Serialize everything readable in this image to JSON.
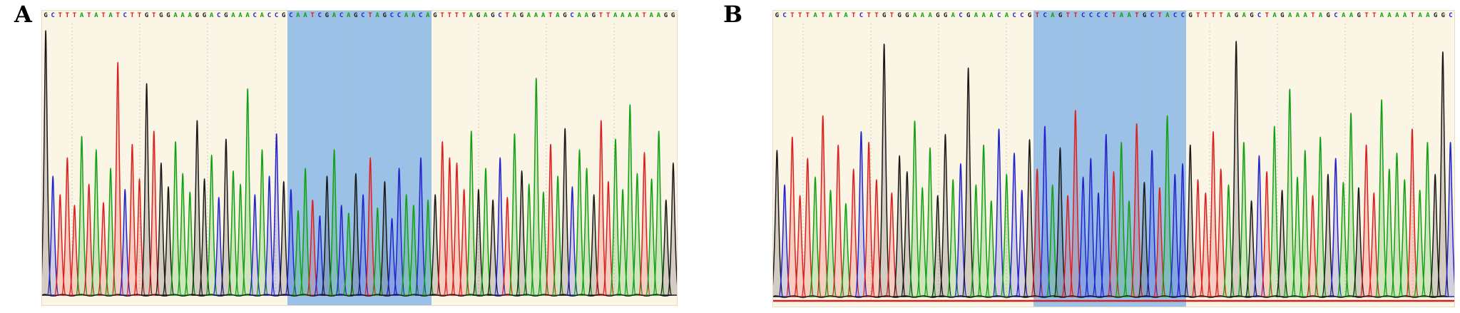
{
  "figure": {
    "kind": "Sanger sequencing chromatograms",
    "base_colors": {
      "A": "#12a112",
      "C": "#2323cc",
      "G": "#1a1a1a",
      "T": "#dc2020"
    },
    "background_color": "#faf5e5",
    "highlight_color": "#9bc1e7",
    "gridline_color": "#c0c0b2",
    "baseline_color": "#1c1c1c",
    "red_baseline_color": "#d42020"
  },
  "chart_data": [
    {
      "type": "area",
      "chart_kind": "sanger-chromatogram",
      "panel_label": "A",
      "sequence_5prime": "GCTTTATATATCTTGTGGAAAGGACGAAACACCG",
      "highlighted_guide": "CAATCGACAGCTAGCCAACA",
      "sequence_3prime": "GTTTTAGAGCTAGAAATAGCAAGTTAAAATAAGG",
      "red_baseline": false,
      "peak_heights_percent": [
        100,
        45,
        38,
        52,
        34,
        60,
        42,
        55,
        35,
        48,
        88,
        40,
        57,
        44,
        80,
        62,
        50,
        41,
        58,
        46,
        39,
        66,
        44,
        53,
        37,
        59,
        47,
        42,
        78,
        38,
        55,
        45,
        61,
        43,
        40,
        32,
        48,
        36,
        30,
        45,
        55,
        34,
        31,
        46,
        38,
        52,
        33,
        43,
        29,
        48,
        38,
        34,
        52,
        36,
        38,
        58,
        52,
        50,
        40,
        62,
        40,
        48,
        36,
        52,
        37,
        61,
        47,
        42,
        82,
        39,
        57,
        45,
        63,
        41,
        55,
        48,
        38,
        66,
        43,
        59,
        40,
        72,
        46,
        54,
        44,
        62,
        36,
        50
      ]
    },
    {
      "type": "area",
      "chart_kind": "sanger-chromatogram",
      "panel_label": "B",
      "sequence_5prime": "GCTTTATATATCTTGTGGAAAGGACGAAACACCG",
      "highlighted_guide": "TCAGTTCCCCTAATGCTACC",
      "sequence_3prime": "GTTTTAGAGCTAGAAATAGCAAGTTAAAATAAGGC",
      "red_baseline": true,
      "peak_heights_percent": [
        55,
        42,
        60,
        38,
        52,
        45,
        68,
        40,
        57,
        35,
        48,
        62,
        58,
        44,
        95,
        39,
        53,
        47,
        66,
        41,
        56,
        38,
        61,
        44,
        50,
        86,
        42,
        57,
        36,
        63,
        46,
        54,
        40,
        59,
        48,
        64,
        42,
        56,
        38,
        70,
        45,
        52,
        39,
        61,
        47,
        58,
        36,
        65,
        43,
        55,
        41,
        68,
        46,
        50,
        57,
        44,
        39,
        62,
        48,
        42,
        96,
        58,
        36,
        53,
        47,
        64,
        40,
        78,
        45,
        55,
        38,
        60,
        46,
        52,
        43,
        69,
        41,
        57,
        39,
        74,
        48,
        54,
        44,
        63,
        40,
        58,
        46,
        92,
        58
      ]
    }
  ]
}
